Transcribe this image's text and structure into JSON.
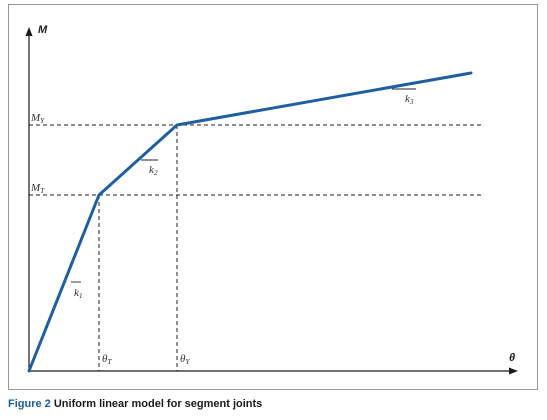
{
  "diagram": {
    "axes": {
      "y_name": "M",
      "x_name": "θ"
    },
    "levels": {
      "my": {
        "base": "M",
        "sub": "Y"
      },
      "mt": {
        "base": "M",
        "sub": "T"
      }
    },
    "rotations": {
      "theta_t": {
        "base": "θ",
        "sub": "T"
      },
      "theta_y": {
        "base": "θ",
        "sub": "Y"
      }
    },
    "slopes": {
      "k1": {
        "base": "k",
        "sub": "1"
      },
      "k2": {
        "base": "k",
        "sub": "2"
      },
      "k3": {
        "base": "k",
        "sub": "3"
      }
    },
    "colors": {
      "curve": "#1f5f9e",
      "axes": "#1a1a1a",
      "guides": "#222222",
      "caption_label": "#1a5fa0"
    }
  },
  "caption": {
    "label": "Figure 2",
    "text": "Uniform linear model for segment joints"
  }
}
